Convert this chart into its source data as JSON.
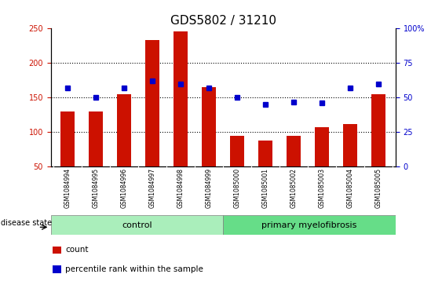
{
  "title": "GDS5802 / 31210",
  "samples": [
    "GSM1084994",
    "GSM1084995",
    "GSM1084996",
    "GSM1084997",
    "GSM1084998",
    "GSM1084999",
    "GSM1085000",
    "GSM1085001",
    "GSM1085002",
    "GSM1085003",
    "GSM1085004",
    "GSM1085005"
  ],
  "counts": [
    130,
    130,
    155,
    233,
    246,
    165,
    95,
    88,
    95,
    107,
    112,
    155
  ],
  "percentiles": [
    57,
    50,
    57,
    62,
    60,
    57,
    50,
    45,
    47,
    46,
    57,
    60
  ],
  "control_label": "control",
  "disease_label": "primary myelofibrosis",
  "disease_state_label": "disease state",
  "ylim_left": [
    50,
    250
  ],
  "ylim_right": [
    0,
    100
  ],
  "yticks_left": [
    50,
    100,
    150,
    200,
    250
  ],
  "yticks_right": [
    0,
    25,
    50,
    75,
    100
  ],
  "ytick_labels_right": [
    "0",
    "25",
    "50",
    "75",
    "100%"
  ],
  "bar_color": "#cc1100",
  "dot_color": "#0000cc",
  "control_bg": "#aaeebb",
  "disease_bg": "#66dd88",
  "xlabel_bg": "#c8c8c8",
  "legend_count_label": "count",
  "legend_percentile_label": "percentile rank within the sample",
  "bar_width": 0.5,
  "title_fontsize": 11,
  "tick_fontsize": 7,
  "label_fontsize": 8,
  "dotted_grid_vals": [
    100,
    150,
    200
  ]
}
